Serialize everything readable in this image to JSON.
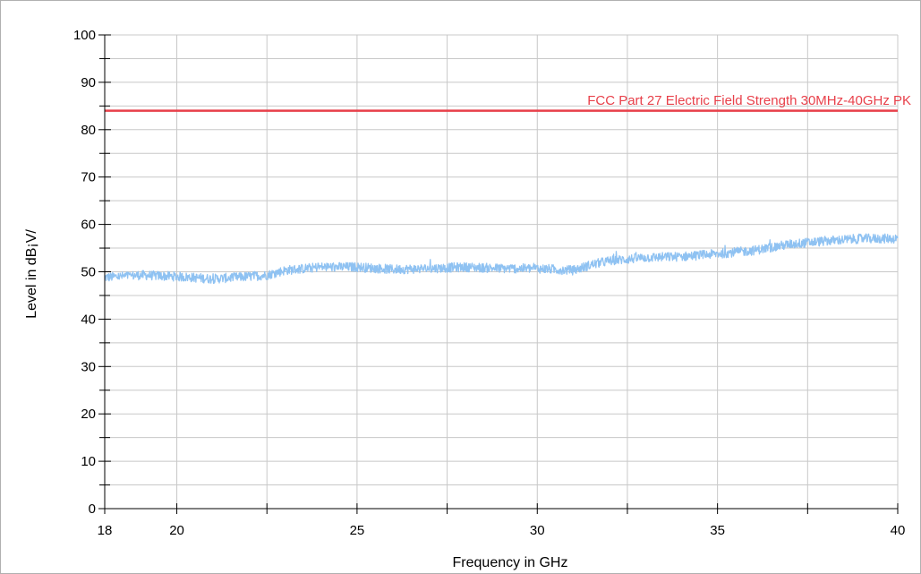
{
  "chart_data": {
    "type": "line",
    "title": "",
    "xlabel": "Frequency in GHz",
    "ylabel": "Level in dB¡V/",
    "xlim": [
      18,
      40
    ],
    "ylim": [
      0,
      100
    ],
    "x_ticks": [
      18,
      20,
      25,
      30,
      35,
      40
    ],
    "x_tick_labels": [
      "18",
      "20",
      "25",
      "30",
      "35",
      "40"
    ],
    "x_minor_ticks": [
      22.5,
      27.5,
      32.5,
      37.5
    ],
    "y_ticks": [
      0,
      10,
      20,
      30,
      40,
      50,
      60,
      70,
      80,
      90,
      100
    ],
    "y_tick_labels": [
      "0",
      "10",
      "20",
      "30",
      "40",
      "50",
      "60",
      "70",
      "80",
      "90",
      "100"
    ],
    "y_minor_ticks": [
      5,
      15,
      25,
      35,
      45,
      55,
      65,
      75,
      85,
      95
    ],
    "grid": true,
    "series": [
      {
        "color": "#8fc2f2",
        "noise_amplitude": 1.0,
        "x": [
          18,
          19,
          20,
          21,
          22,
          22.5,
          23,
          24,
          25,
          26,
          27,
          28,
          29,
          30,
          30.5,
          31,
          31.5,
          32,
          33,
          34,
          35,
          36,
          37,
          38,
          39,
          40
        ],
        "y": [
          48.8,
          49.3,
          49.0,
          48.5,
          49.0,
          49.3,
          50.3,
          51.0,
          51.0,
          50.5,
          50.7,
          51.0,
          50.7,
          50.7,
          50.5,
          50.3,
          51.5,
          52.3,
          53.0,
          53.2,
          53.8,
          54.5,
          55.8,
          56.5,
          57.0,
          57.0
        ]
      }
    ],
    "limit_line": {
      "label": "FCC Part 27 Electric Field Strength 30MHz-40GHz PK",
      "y": 84,
      "color": "#e8404a"
    }
  }
}
